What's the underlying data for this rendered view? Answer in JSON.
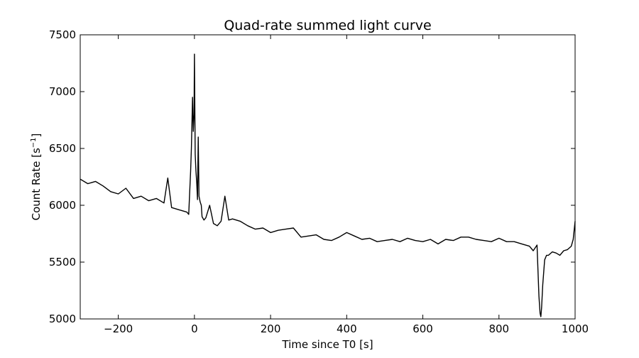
{
  "chart_data": {
    "type": "line",
    "title": "Quad-rate summed light curve",
    "xlabel": "Time since T0 [s]",
    "ylabel": "Count Rate [s",
    "ylabel_sup": "−1",
    "ylabel_end": "]",
    "xlim": [
      -300,
      1000
    ],
    "ylim": [
      5000,
      7500
    ],
    "xticks": [
      -200,
      0,
      200,
      400,
      600,
      800,
      1000
    ],
    "xtick_labels": [
      "−200",
      "0",
      "200",
      "400",
      "600",
      "800",
      "1000"
    ],
    "yticks": [
      5000,
      5500,
      6000,
      6500,
      7000,
      7500
    ],
    "ytick_labels": [
      "5000",
      "5500",
      "6000",
      "6500",
      "7000",
      "7500"
    ],
    "grid": false,
    "line_color": "#000000",
    "series": [
      {
        "x": [
          -300,
          -280,
          -260,
          -240,
          -220,
          -200,
          -180,
          -160,
          -140,
          -120,
          -100,
          -80,
          -70,
          -60,
          -40,
          -20,
          -15,
          -10,
          -8,
          -5,
          -3,
          -1,
          0,
          2,
          4,
          6,
          8,
          10,
          12,
          15,
          18,
          20,
          25,
          30,
          40,
          50,
          60,
          70,
          80,
          90,
          100,
          120,
          140,
          160,
          180,
          200,
          220,
          240,
          260,
          280,
          300,
          320,
          340,
          360,
          380,
          400,
          420,
          440,
          460,
          480,
          500,
          520,
          540,
          560,
          580,
          600,
          620,
          640,
          660,
          680,
          700,
          720,
          740,
          760,
          780,
          800,
          820,
          840,
          860,
          880,
          890,
          900,
          905,
          908,
          910,
          912,
          915,
          920,
          925,
          930,
          940,
          950,
          960,
          970,
          980,
          990,
          995,
          1000
        ],
        "y": [
          6230,
          6190,
          6210,
          6170,
          6120,
          6100,
          6150,
          6060,
          6080,
          6040,
          6060,
          6020,
          6240,
          5980,
          5960,
          5940,
          5920,
          6300,
          6500,
          6950,
          6650,
          6800,
          7330,
          6450,
          6300,
          6200,
          6050,
          6600,
          6080,
          6030,
          6000,
          5900,
          5870,
          5890,
          6000,
          5840,
          5820,
          5860,
          6080,
          5870,
          5880,
          5860,
          5820,
          5790,
          5800,
          5760,
          5780,
          5790,
          5800,
          5720,
          5730,
          5740,
          5700,
          5690,
          5720,
          5760,
          5730,
          5700,
          5710,
          5680,
          5690,
          5700,
          5680,
          5710,
          5690,
          5680,
          5700,
          5660,
          5700,
          5690,
          5720,
          5720,
          5700,
          5690,
          5680,
          5710,
          5680,
          5680,
          5660,
          5640,
          5600,
          5650,
          5200,
          5050,
          5020,
          5100,
          5300,
          5520,
          5560,
          5560,
          5590,
          5580,
          5560,
          5600,
          5610,
          5640,
          5700,
          5860
        ]
      }
    ]
  }
}
